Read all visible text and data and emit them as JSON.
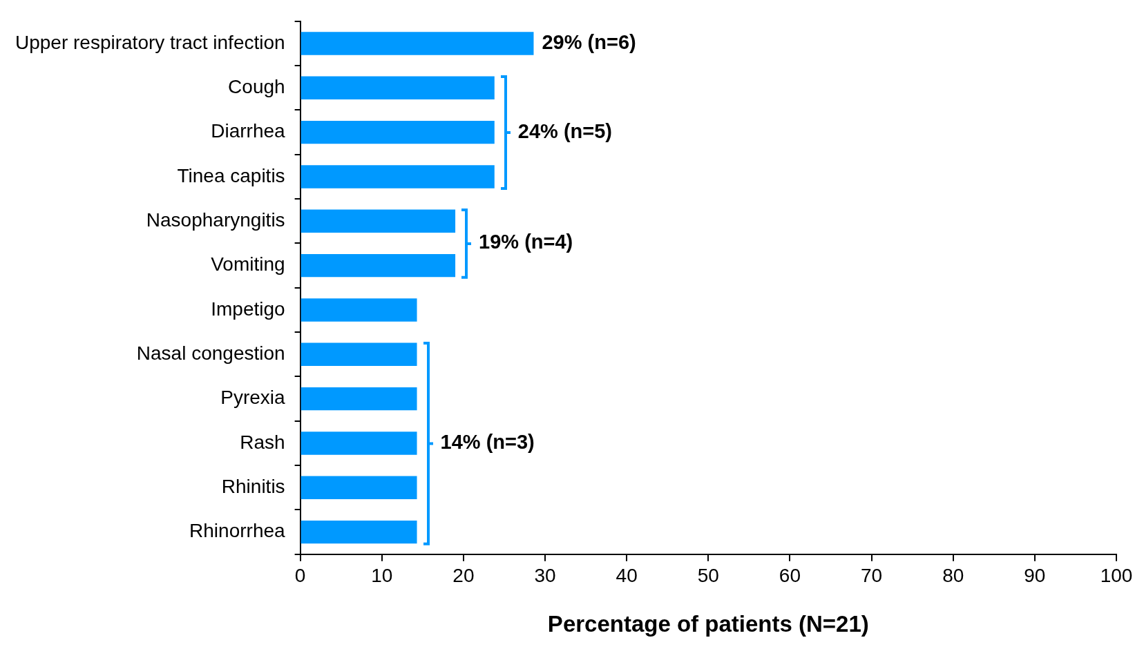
{
  "chart_data": {
    "type": "bar",
    "orientation": "horizontal",
    "xlabel": "Percentage of patients (N=21)",
    "categories": [
      "Upper respiratory tract infection",
      "Cough",
      "Diarrhea",
      "Tinea capitis",
      "Nasopharyngitis",
      "Vomiting",
      "Impetigo",
      "Nasal congestion",
      "Pyrexia",
      "Rash",
      "Rhinitis",
      "Rhinorrhea"
    ],
    "values": [
      28.6,
      23.8,
      23.8,
      23.8,
      19.0,
      19.0,
      14.3,
      14.3,
      14.3,
      14.3,
      14.3,
      14.3
    ],
    "color": "#0099ff",
    "xlim": [
      0,
      100
    ],
    "xticks": [
      0,
      10,
      20,
      30,
      40,
      50,
      60,
      70,
      80,
      90,
      100
    ],
    "grid": false,
    "legend": false,
    "annotations": [
      {
        "text": "29% (n=6)",
        "x": 28.6,
        "y": "Upper respiratory tract infection"
      },
      {
        "text": "24% (n=5)",
        "x": 23.8,
        "y": "Cough"
      },
      {
        "text": "19% (n=4)",
        "x": 19.0,
        "y": "Nasopharyngitis"
      },
      {
        "text": "14% (n=3)",
        "x": 14.3,
        "y": "Rash"
      }
    ]
  }
}
